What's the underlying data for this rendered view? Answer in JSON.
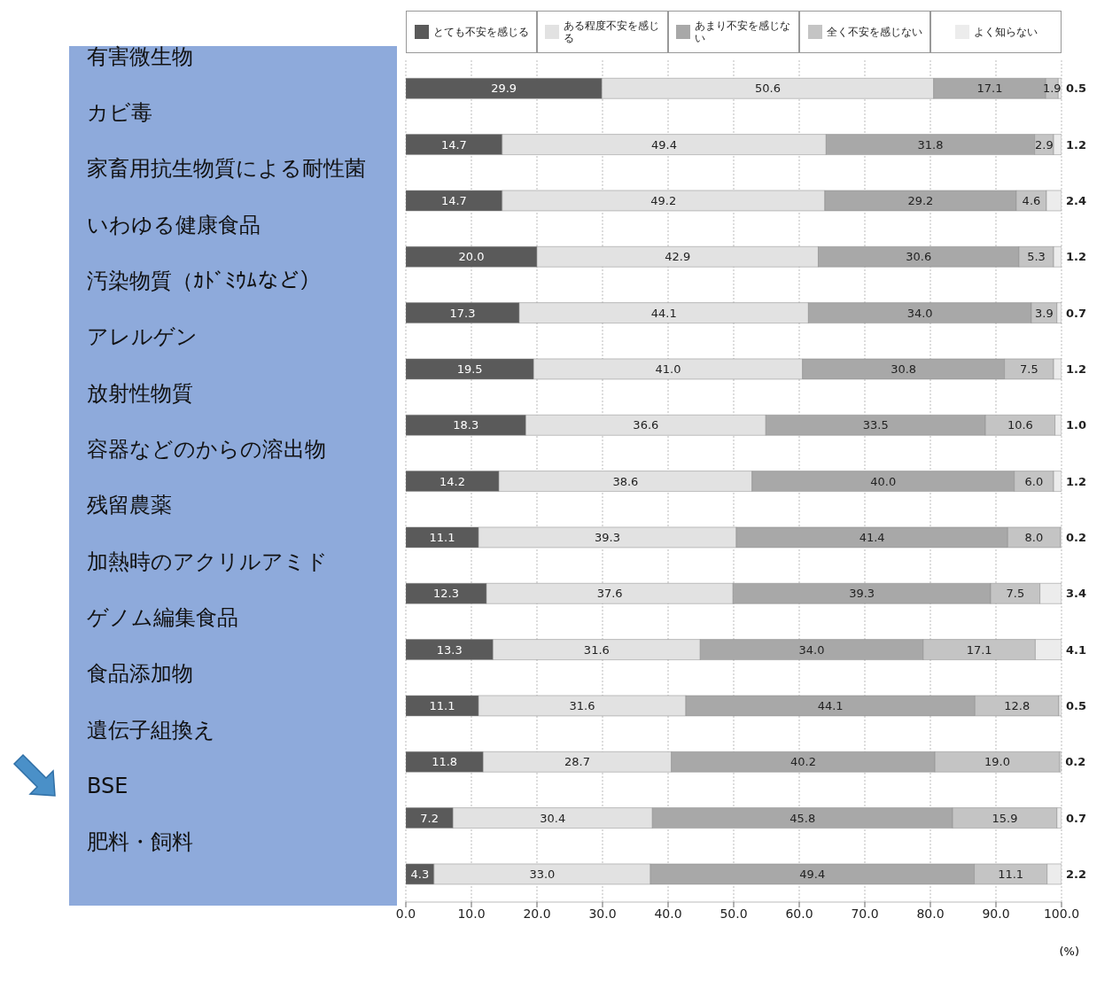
{
  "chart_data": {
    "type": "bar",
    "orientation": "horizontal",
    "stacked": true,
    "xlabel": "(%)",
    "categories": [
      "有害微生物",
      "カビ毒",
      "家畜用抗生物質による耐性菌",
      "いわゆる健康食品",
      "汚染物質（ｶﾄﾞﾐｳﾑなど）",
      "アレルゲン",
      "放射性物質",
      "容器などのからの溶出物",
      "残留農薬",
      "加熱時のアクリルアミド",
      "ゲノム編集食品",
      "食品添加物",
      "遺伝子組換え",
      "BSE",
      "肥料・飼料"
    ],
    "series": [
      {
        "name": "とても不安を感じる",
        "color": "#5a5a5a",
        "values": [
          29.9,
          14.7,
          14.7,
          20.0,
          17.3,
          19.5,
          18.3,
          14.2,
          11.1,
          12.3,
          13.3,
          11.1,
          11.8,
          7.2,
          4.3
        ],
        "value_labels": [
          "29.9",
          "14.7",
          "14.7",
          "20.0",
          "17.3",
          "19.5",
          "18.3",
          "14.2",
          "11.1",
          "12.3",
          "13.3",
          "11.1",
          "11.8",
          "7.2",
          "4.3"
        ]
      },
      {
        "name": "ある程度不安を感じる",
        "color": "#e2e2e2",
        "values": [
          50.6,
          49.4,
          49.2,
          42.9,
          44.1,
          41.0,
          36.6,
          38.6,
          39.3,
          37.6,
          31.6,
          31.6,
          28.7,
          30.4,
          33.0
        ],
        "value_labels": [
          "50.6",
          "49.4",
          "49.2",
          "42.9",
          "44.1",
          "41.0",
          "36.6",
          "38.6",
          "39.3",
          "37.6",
          "31.6",
          "31.6",
          "28.7",
          "30.4",
          "33.0"
        ]
      },
      {
        "name": "あまり不安を感じない",
        "color": "#a8a8a8",
        "values": [
          17.1,
          31.8,
          29.2,
          30.6,
          34.0,
          30.8,
          33.5,
          40.0,
          41.4,
          39.3,
          34.0,
          44.1,
          40.2,
          45.8,
          49.4
        ],
        "value_labels": [
          "17.1",
          "31.8",
          "29.2",
          "30.6",
          "34.0",
          "30.8",
          "33.5",
          "40.0",
          "41.4",
          "39.3",
          "34.0",
          "44.1",
          "40.2",
          "45.8",
          "49.4"
        ]
      },
      {
        "name": "全く不安を感じない",
        "color": "#c4c4c4",
        "values": [
          1.9,
          2.9,
          4.6,
          5.3,
          3.9,
          7.5,
          10.6,
          6.0,
          8.0,
          7.5,
          17.1,
          12.8,
          19.0,
          15.9,
          11.1
        ],
        "value_labels": [
          "1.9",
          "2.9",
          "4.6",
          "5.3",
          "3.9",
          "7.5",
          "10.6",
          "6.0",
          "8.0",
          "7.5",
          "17.1",
          "12.8",
          "19.0",
          "15.9",
          "11.1"
        ]
      },
      {
        "name": "よく知らない",
        "color": "#ececec",
        "values": [
          0.5,
          1.2,
          2.4,
          1.2,
          0.7,
          1.2,
          1.0,
          1.2,
          0.2,
          3.4,
          4.1,
          0.5,
          0.2,
          0.7,
          2.2
        ],
        "value_labels": [
          "0.5",
          "1.2",
          "2.4",
          "1.2",
          "0.7",
          "1.2",
          "1.0",
          "1.2",
          "0.2",
          "3.4",
          "4.1",
          "0.5",
          "0.2",
          "0.7",
          "2.2"
        ]
      }
    ],
    "xlim": [
      0,
      100
    ],
    "xticks": [
      {
        "value": 0,
        "label": "0.0"
      },
      {
        "value": 10,
        "label": "10.0"
      },
      {
        "value": 20,
        "label": "20.0"
      },
      {
        "value": 30,
        "label": "30.0"
      },
      {
        "value": 40,
        "label": "40.0"
      },
      {
        "value": 50,
        "label": "50.0"
      },
      {
        "value": 60,
        "label": "60.0"
      },
      {
        "value": 70,
        "label": "70.0"
      },
      {
        "value": 80,
        "label": "80.0"
      },
      {
        "value": 90,
        "label": "90.0"
      },
      {
        "value": 100,
        "label": "100.0"
      }
    ],
    "grid": "x",
    "legend": "top"
  }
}
